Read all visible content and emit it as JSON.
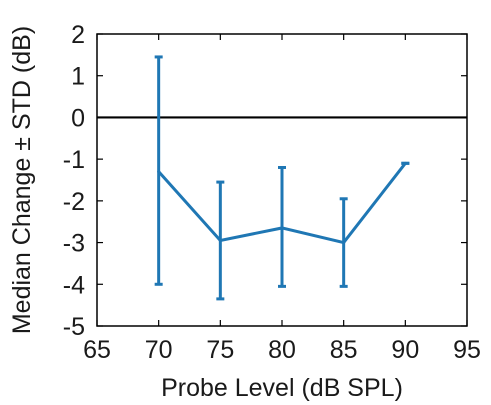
{
  "chart_data": {
    "type": "line",
    "title": "",
    "xlabel": "Probe Level (dB SPL)",
    "ylabel": "Median Change ± STD (dB)",
    "xlim": [
      65,
      95
    ],
    "ylim": [
      -5,
      2
    ],
    "xticks": [
      65,
      70,
      75,
      80,
      85,
      90,
      95
    ],
    "yticks": [
      2,
      1,
      0,
      -1,
      -2,
      -3,
      -4,
      -5
    ],
    "grid": false,
    "legend": "none",
    "reference_line": {
      "y": 0,
      "color": "#000000"
    },
    "series": [
      {
        "color": "#1f77b4",
        "x": [
          70,
          75,
          80,
          85,
          90
        ],
        "y": [
          -1.3,
          -2.95,
          -2.65,
          -3.0,
          -1.1
        ],
        "err_lower": [
          -4.0,
          -4.35,
          -4.05,
          -4.05,
          -1.1
        ],
        "err_upper": [
          1.45,
          -1.55,
          -1.2,
          -1.95,
          -1.1
        ]
      }
    ]
  }
}
